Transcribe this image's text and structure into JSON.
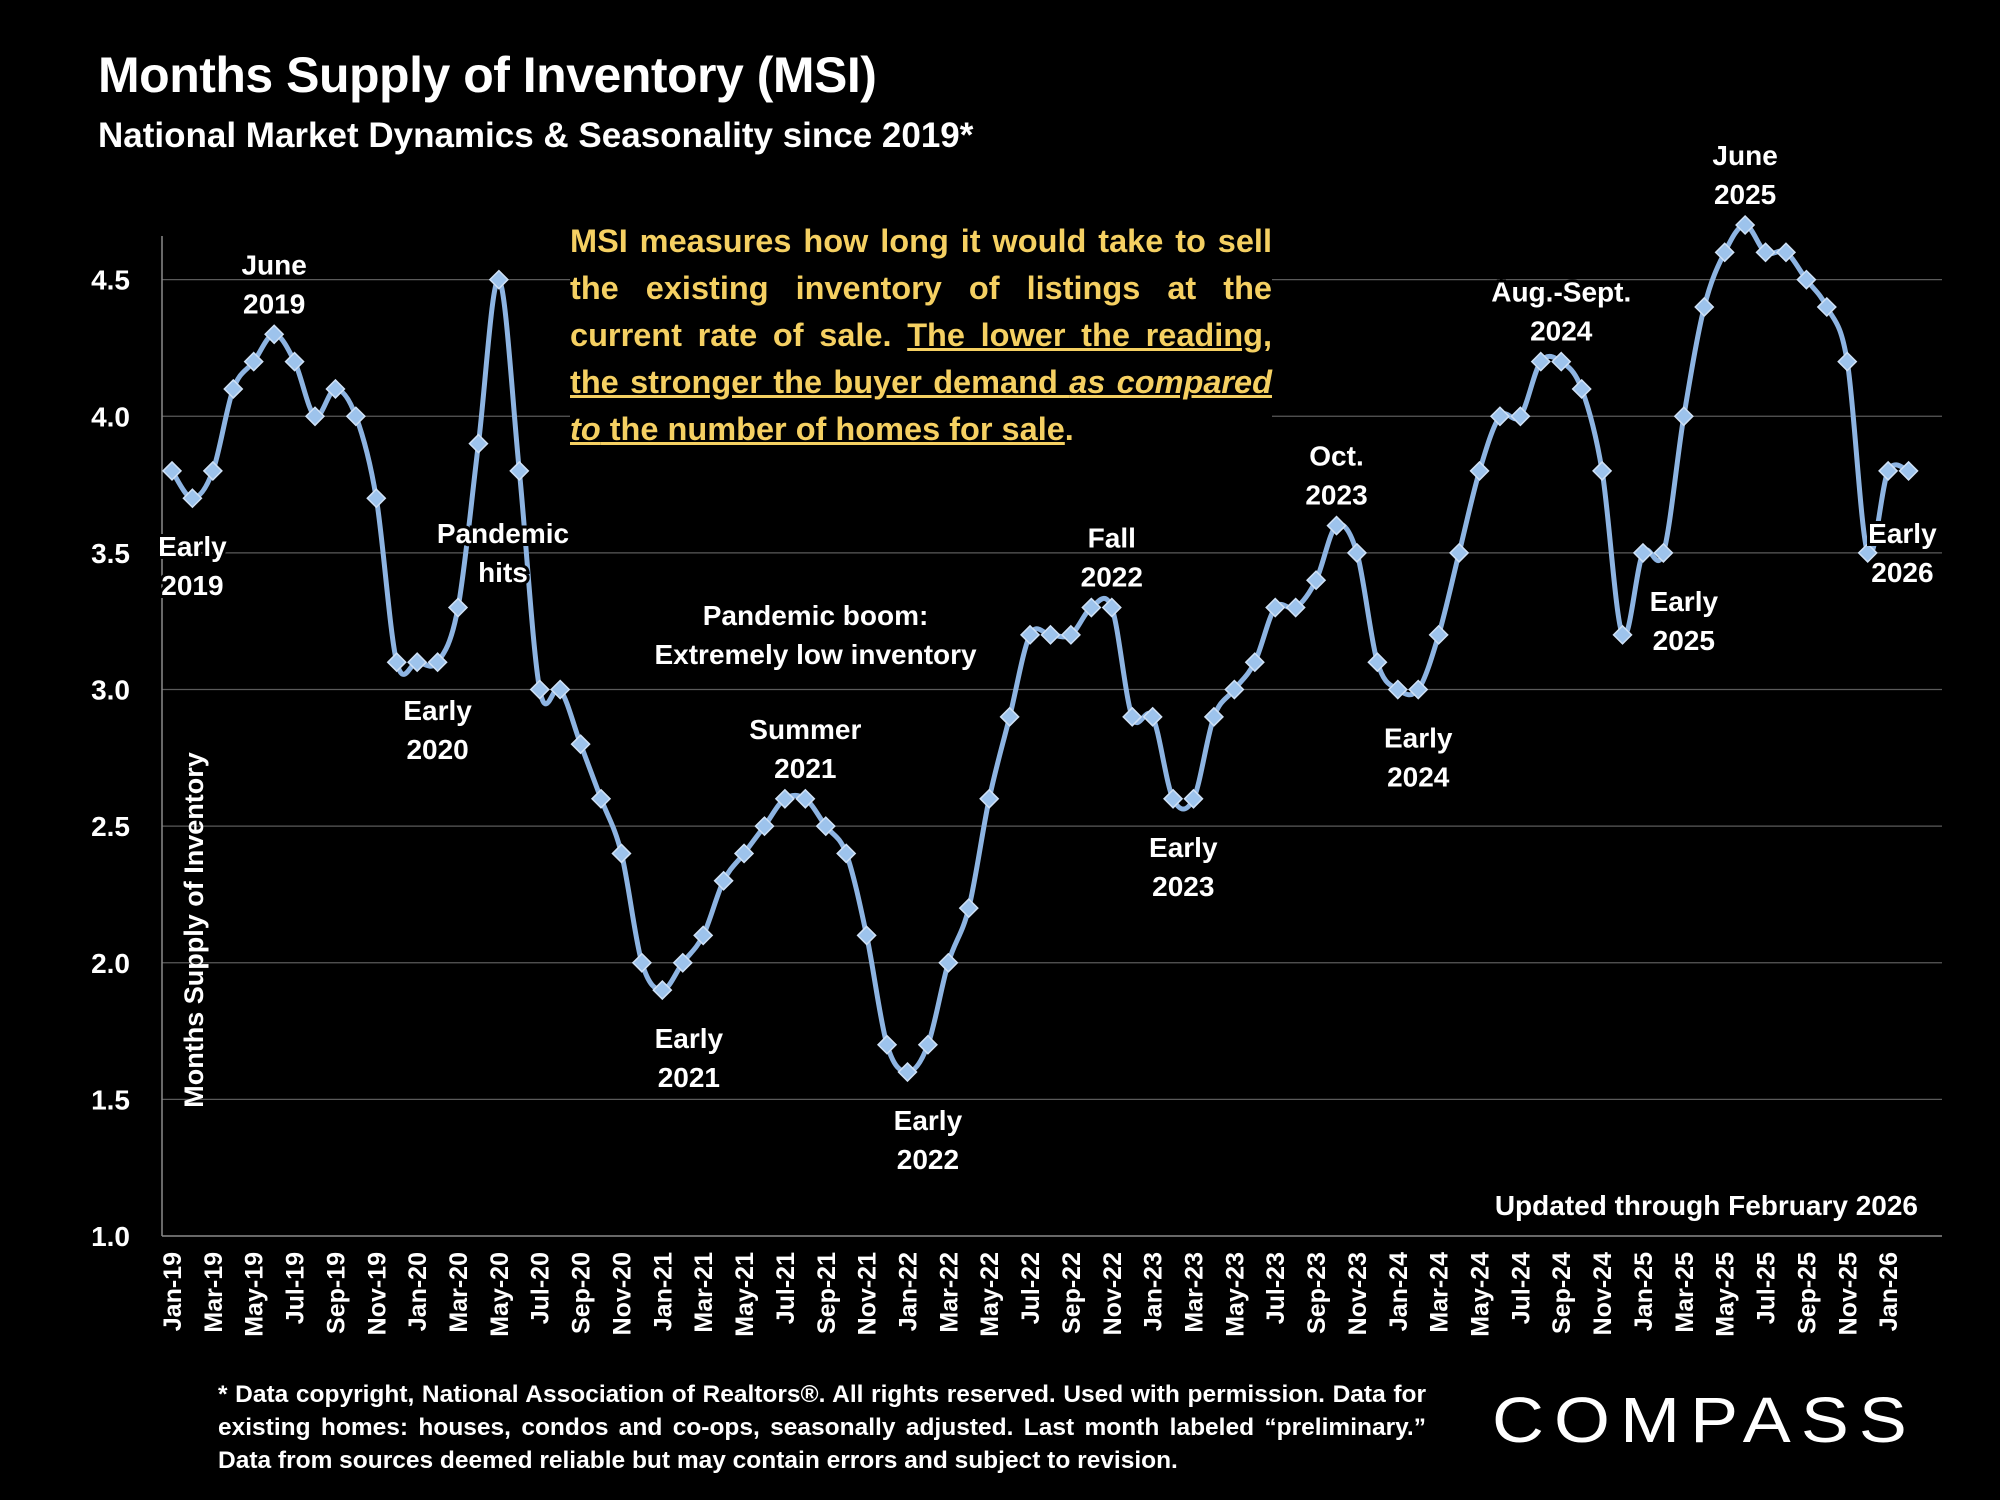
{
  "title": "Months Supply of Inventory (MSI)",
  "subtitle": "National Market Dynamics & Seasonality since 2019*",
  "note": {
    "part1": "MSI measures how long it would take to sell the existing inventory of listings at the current rate of sale. ",
    "part2": "The lower the reading, the stronger the buyer demand ",
    "part3": "as compared to",
    "part4": " the number of homes for sale",
    "part5": "."
  },
  "updated": "Updated through February 2026",
  "footnote": "* Data copyright, National Association of Realtors®. All rights reserved. Used with permission. Data for existing homes: houses, condos and co-ops, seasonally adjusted. Last month labeled “preliminary.” Data from sources deemed reliable but may contain errors and subject to revision.",
  "logo": "COMPASS",
  "colors": {
    "line": "#8db4e2",
    "marker": "#9dc3ec",
    "note": "#f5d062",
    "background": "#000000"
  },
  "chart_data": {
    "type": "line",
    "ylabel": "Months Supply of Inventory",
    "ylim": [
      1.0,
      4.7
    ],
    "yticks": [
      "1.0",
      "1.5",
      "2.0",
      "2.5",
      "3.0",
      "3.5",
      "4.0",
      "4.5"
    ],
    "x": [
      "Jan-19",
      "Feb-19",
      "Mar-19",
      "Apr-19",
      "May-19",
      "Jun-19",
      "Jul-19",
      "Aug-19",
      "Sep-19",
      "Oct-19",
      "Nov-19",
      "Dec-19",
      "Jan-20",
      "Feb-20",
      "Mar-20",
      "Apr-20",
      "May-20",
      "Jun-20",
      "Jul-20",
      "Aug-20",
      "Sep-20",
      "Oct-20",
      "Nov-20",
      "Dec-20",
      "Jan-21",
      "Feb-21",
      "Mar-21",
      "Apr-21",
      "May-21",
      "Jun-21",
      "Jul-21",
      "Aug-21",
      "Sep-21",
      "Oct-21",
      "Nov-21",
      "Dec-21",
      "Jan-22",
      "Feb-22",
      "Mar-22",
      "Apr-22",
      "May-22",
      "Jun-22",
      "Jul-22",
      "Aug-22",
      "Sep-22",
      "Oct-22",
      "Nov-22",
      "Dec-22",
      "Jan-23",
      "Feb-23",
      "Mar-23",
      "Apr-23",
      "May-23",
      "Jun-23",
      "Jul-23",
      "Aug-23",
      "Sep-23",
      "Oct-23",
      "Nov-23",
      "Dec-23",
      "Jan-24",
      "Feb-24",
      "Mar-24",
      "Apr-24",
      "May-24",
      "Jun-24",
      "Jul-24",
      "Aug-24",
      "Sep-24",
      "Oct-24",
      "Nov-24",
      "Dec-24",
      "Jan-25",
      "Feb-25",
      "Mar-25",
      "Apr-25",
      "May-25",
      "Jun-25",
      "Jul-25",
      "Aug-25",
      "Sep-25",
      "Oct-25",
      "Nov-25",
      "Dec-25",
      "Jan-26",
      "Feb-26"
    ],
    "xtick_labels": [
      "Jan-19",
      "Mar-19",
      "May-19",
      "Jul-19",
      "Sep-19",
      "Nov-19",
      "Jan-20",
      "Mar-20",
      "May-20",
      "Jul-20",
      "Sep-20",
      "Nov-20",
      "Jan-21",
      "Mar-21",
      "May-21",
      "Jul-21",
      "Sep-21",
      "Nov-21",
      "Jan-22",
      "Mar-22",
      "May-22",
      "Jul-22",
      "Sep-22",
      "Nov-22",
      "Jan-23",
      "Mar-23",
      "May-23",
      "Jul-23",
      "Sep-23",
      "Nov-23",
      "Jan-24",
      "Mar-24",
      "May-24",
      "Jul-24",
      "Sep-24",
      "Nov-24",
      "Jan-25",
      "Mar-25",
      "May-25",
      "Jul-25",
      "Sep-25",
      "Nov-25",
      "Jan-26"
    ],
    "values": [
      3.8,
      3.7,
      3.8,
      4.1,
      4.2,
      4.3,
      4.2,
      4.0,
      4.1,
      4.0,
      3.7,
      3.1,
      3.1,
      3.1,
      3.3,
      3.9,
      4.5,
      3.8,
      3.0,
      3.0,
      2.8,
      2.6,
      2.4,
      2.0,
      1.9,
      2.0,
      2.1,
      2.3,
      2.4,
      2.5,
      2.6,
      2.6,
      2.5,
      2.4,
      2.1,
      1.7,
      1.6,
      1.7,
      2.0,
      2.2,
      2.6,
      2.9,
      3.2,
      3.2,
      3.2,
      3.3,
      3.3,
      2.9,
      2.9,
      2.6,
      2.6,
      2.9,
      3.0,
      3.1,
      3.3,
      3.3,
      3.4,
      3.6,
      3.5,
      3.1,
      3.0,
      3.0,
      3.2,
      3.5,
      3.8,
      4.0,
      4.0,
      4.2,
      4.2,
      4.1,
      3.8,
      3.2,
      3.5,
      3.5,
      4.0,
      4.4,
      4.6,
      4.7,
      4.6,
      4.6,
      4.5,
      4.4,
      4.2,
      3.5,
      3.8,
      3.8
    ],
    "grid": true,
    "annotations": [
      {
        "lines": [
          "June",
          "2019"
        ],
        "index": 5,
        "y": 4.3,
        "pos": "above"
      },
      {
        "lines": [
          "Early",
          "2019"
        ],
        "index": 1,
        "y": 3.7,
        "pos": "below"
      },
      {
        "lines": [
          "Early",
          "2020"
        ],
        "index": 13,
        "y": 3.1,
        "pos": "below"
      },
      {
        "lines": [
          "Pandemic",
          "hits"
        ],
        "index": 16.2,
        "y": 3.5,
        "pos": "center"
      },
      {
        "lines": [
          "Pandemic boom:",
          "Extremely low inventory"
        ],
        "index": 31.5,
        "y": 3.2,
        "pos": "center"
      },
      {
        "lines": [
          "Summer",
          "2021"
        ],
        "index": 31,
        "y": 2.6,
        "pos": "above"
      },
      {
        "lines": [
          "Early",
          "2021"
        ],
        "index": 25.3,
        "y": 1.9,
        "pos": "below"
      },
      {
        "lines": [
          "Early",
          "2022"
        ],
        "index": 37,
        "y": 1.6,
        "pos": "below"
      },
      {
        "lines": [
          "Fall",
          "2022"
        ],
        "index": 46,
        "y": 3.3,
        "pos": "above"
      },
      {
        "lines": [
          "Early",
          "2023"
        ],
        "index": 49.5,
        "y": 2.6,
        "pos": "below"
      },
      {
        "lines": [
          "Oct.",
          "2023"
        ],
        "index": 57,
        "y": 3.6,
        "pos": "above"
      },
      {
        "lines": [
          "Early",
          "2024"
        ],
        "index": 61,
        "y": 3.0,
        "pos": "below"
      },
      {
        "lines": [
          "Aug.-Sept.",
          "2024"
        ],
        "index": 68,
        "y": 4.2,
        "pos": "above"
      },
      {
        "lines": [
          "Early",
          "2025"
        ],
        "index": 74,
        "y": 3.5,
        "pos": "below"
      },
      {
        "lines": [
          "June",
          "2025"
        ],
        "index": 77,
        "y": 4.7,
        "pos": "above"
      },
      {
        "lines": [
          "Early",
          "2026"
        ],
        "index": 84.7,
        "y": 3.5,
        "pos": "center"
      }
    ]
  }
}
